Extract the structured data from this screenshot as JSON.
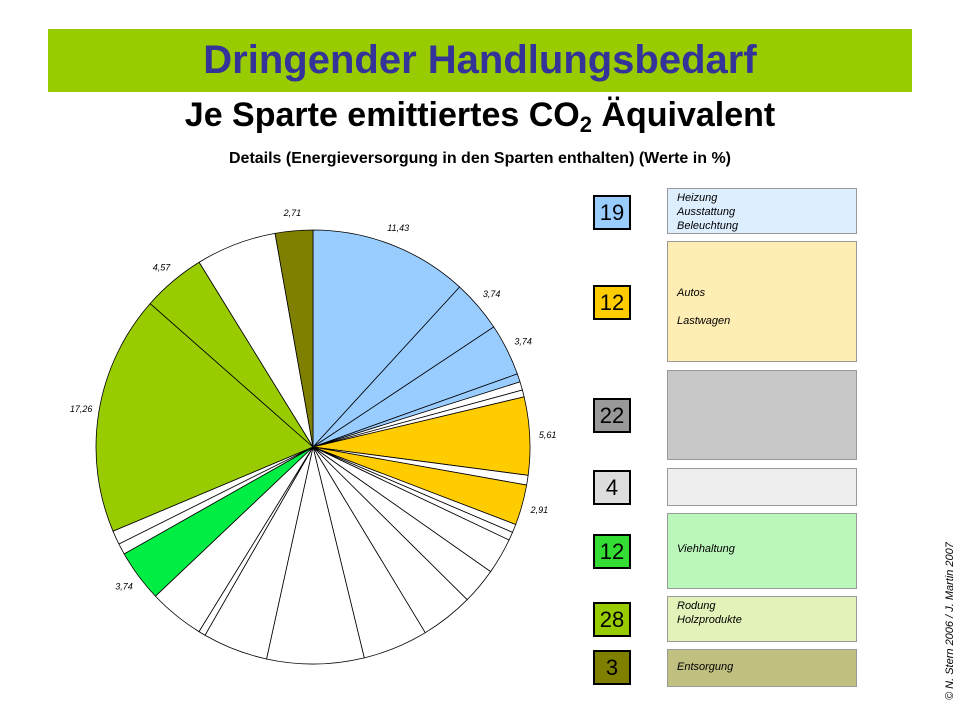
{
  "header": {
    "title": "Dringender Handlungsbedarf",
    "subtitle_main": "Je Sparte emittiertes CO",
    "subtitle_sub": "2",
    "subtitle_tail": " Äquivalent",
    "details": "Details (Energieversorgung in den Sparten enthalten) (Werte in %)"
  },
  "colors": {
    "banner": "#99cc00",
    "title": "#333399",
    "heizung": "#99ccff",
    "verkehr": "#ffcc00",
    "industrie": "#c0c0c0",
    "other": "#eeeeee",
    "landwirtschaft": "#00ee44",
    "rodung": "#99cc00",
    "entsorgung": "#808000"
  },
  "chart_data": {
    "type": "pie",
    "unit": "%",
    "slices": [
      {
        "label": "11,43",
        "value": 11.43,
        "group": "heizung"
      },
      {
        "label": "3,74",
        "value": 3.74,
        "group": "heizung"
      },
      {
        "label": "3,74",
        "value": 3.74,
        "group": "heizung"
      },
      {
        "label": "",
        "value": 0.6,
        "group": "heizung"
      },
      {
        "label": "",
        "value": 0.6,
        "group": "other"
      },
      {
        "label": "",
        "value": 0.5,
        "group": "other"
      },
      {
        "label": "5,61",
        "value": 5.61,
        "group": "verkehr"
      },
      {
        "label": "",
        "value": 0.7,
        "group": "other"
      },
      {
        "label": "2,91",
        "value": 2.91,
        "group": "verkehr"
      },
      {
        "label": "",
        "value": 0.6,
        "group": "other"
      },
      {
        "label": "",
        "value": 0.6,
        "group": "other"
      },
      {
        "label": "",
        "value": 2.6,
        "group": "other"
      },
      {
        "label": "",
        "value": 2.6,
        "group": "other"
      },
      {
        "label": "",
        "value": 3.8,
        "group": "other"
      },
      {
        "label": "",
        "value": 4.7,
        "group": "other"
      },
      {
        "label": "",
        "value": 7.0,
        "group": "other"
      },
      {
        "label": "",
        "value": 4.7,
        "group": "other"
      },
      {
        "label": "",
        "value": 0.5,
        "group": "other"
      },
      {
        "label": "",
        "value": 4.0,
        "group": "other"
      },
      {
        "label": "3,74",
        "value": 3.74,
        "group": "landwirtschaft"
      },
      {
        "label": "",
        "value": 0.8,
        "group": "other"
      },
      {
        "label": "",
        "value": 1.0,
        "group": "other"
      },
      {
        "label": "17,26",
        "value": 17.26,
        "group": "rodung"
      },
      {
        "label": "4,57",
        "value": 4.57,
        "group": "rodung"
      },
      {
        "label": "",
        "value": 5.8,
        "group": "other"
      },
      {
        "label": "2,71",
        "value": 2.71,
        "group": "entsorgung"
      }
    ]
  },
  "legend": [
    {
      "value": "19",
      "color": "#99ccff",
      "desc_color": "#ddeeff",
      "lines": [
        "Heizung",
        "Ausstattung",
        "Beleuchtung"
      ]
    },
    {
      "value": "12",
      "color": "#ffcc00",
      "desc_color": "#ffeeb3",
      "lines": [
        "Autos",
        "",
        "Lastwagen"
      ]
    },
    {
      "value": "22",
      "color": "#999999",
      "desc_color": "#c8c8c8",
      "lines": []
    },
    {
      "value": "4",
      "color": "#dddddd",
      "desc_color": "#eeeeee",
      "lines": []
    },
    {
      "value": "12",
      "color": "#33dd33",
      "desc_color": "#bbf7bb",
      "lines": [
        "Viehhaltung"
      ]
    },
    {
      "value": "28",
      "color": "#99cc00",
      "desc_color": "#e3f2b8",
      "lines": [
        "Rodung",
        "Holzprodukte"
      ]
    },
    {
      "value": "3",
      "color": "#808000",
      "desc_color": "#c0c080",
      "lines": [
        "Entsorgung"
      ]
    }
  ],
  "credit": "© N. Stern 2006 / J. Martin 2007"
}
